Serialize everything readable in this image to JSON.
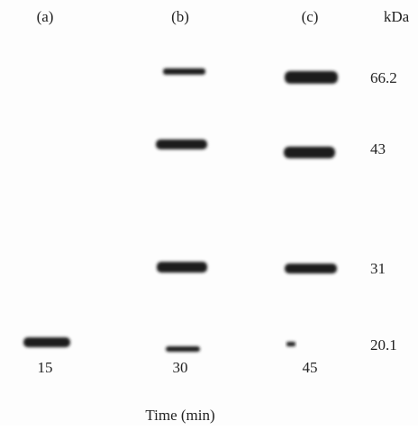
{
  "lanes": [
    {
      "label": "(a)",
      "time": "15"
    },
    {
      "label": "(b)",
      "time": "30"
    },
    {
      "label": "(c)",
      "time": "45"
    }
  ],
  "marker_unit": "kDa",
  "markers": [
    "66.2",
    "43",
    "31",
    "20.1"
  ],
  "x_axis_label": "Time (min)"
}
